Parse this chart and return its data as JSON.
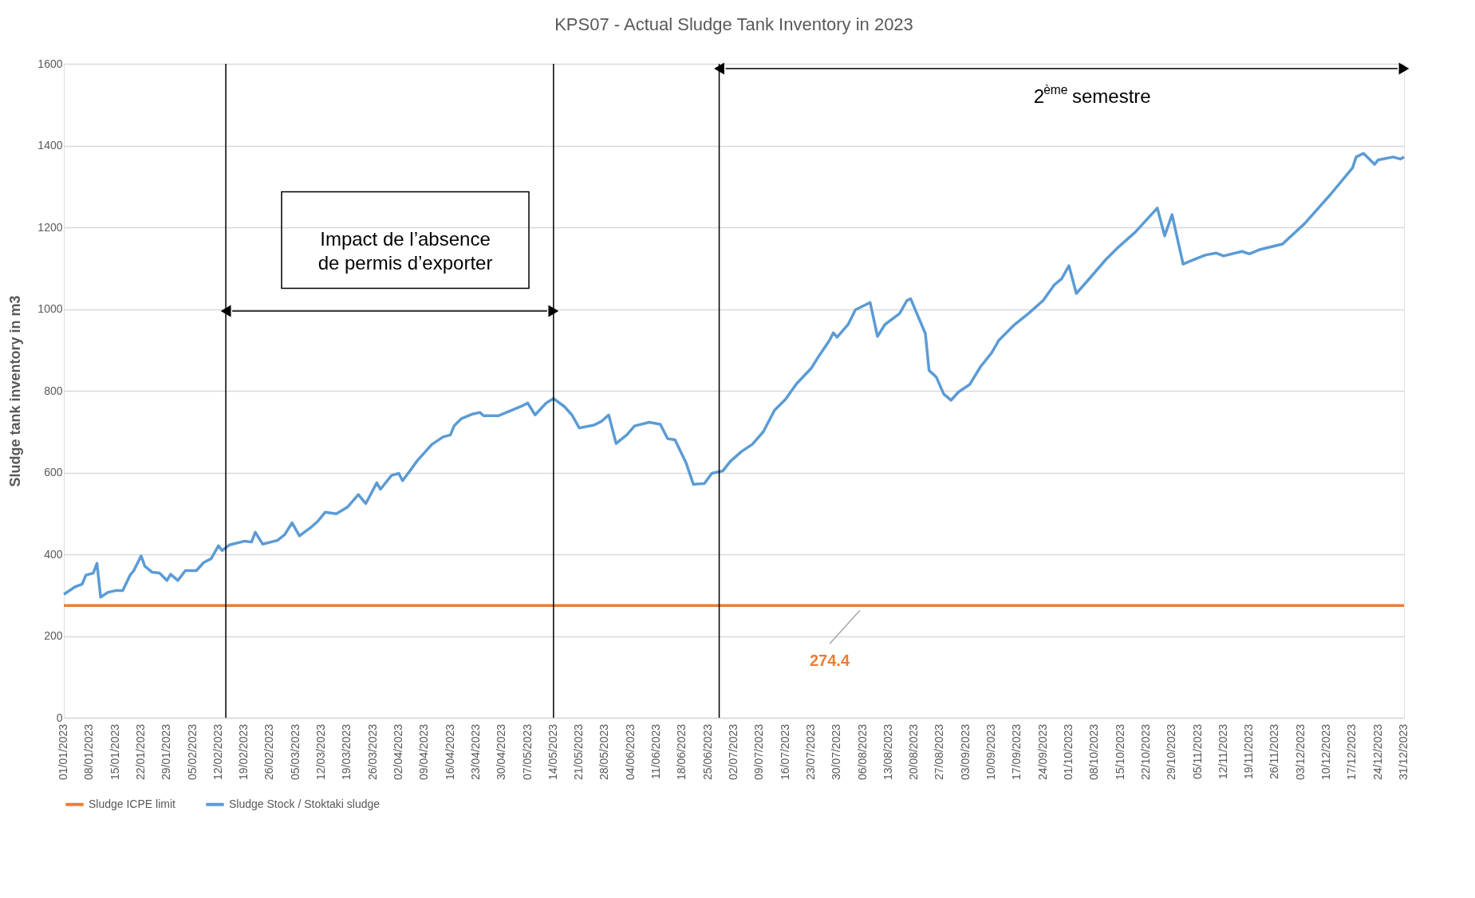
{
  "chart_data": {
    "type": "line",
    "title": "KPS07 - Actual Sludge Tank Inventory in 2023",
    "ylabel": "Sludge tank inventory in m3",
    "xlim": [
      "2023-01-01",
      "2023-12-31"
    ],
    "ylim": [
      0,
      1600
    ],
    "yticks": [
      0,
      200,
      400,
      600,
      800,
      1000,
      1200,
      1400,
      1600
    ],
    "xticks": [
      {
        "value": "2023-01-01",
        "label": "01/01/2023"
      },
      {
        "value": "2023-01-08",
        "label": "08/01/2023"
      },
      {
        "value": "2023-01-15",
        "label": "15/01/2023"
      },
      {
        "value": "2023-01-22",
        "label": "22/01/2023"
      },
      {
        "value": "2023-01-29",
        "label": "29/01/2023"
      },
      {
        "value": "2023-02-05",
        "label": "05/02/2023"
      },
      {
        "value": "2023-02-12",
        "label": "12/02/2023"
      },
      {
        "value": "2023-02-19",
        "label": "19/02/2023"
      },
      {
        "value": "2023-02-26",
        "label": "26/02/2023"
      },
      {
        "value": "2023-03-05",
        "label": "05/03/2023"
      },
      {
        "value": "2023-03-12",
        "label": "12/03/2023"
      },
      {
        "value": "2023-03-19",
        "label": "19/03/2023"
      },
      {
        "value": "2023-03-26",
        "label": "26/03/2023"
      },
      {
        "value": "2023-04-02",
        "label": "02/04/2023"
      },
      {
        "value": "2023-04-09",
        "label": "09/04/2023"
      },
      {
        "value": "2023-04-16",
        "label": "16/04/2023"
      },
      {
        "value": "2023-04-23",
        "label": "23/04/2023"
      },
      {
        "value": "2023-04-30",
        "label": "30/04/2023"
      },
      {
        "value": "2023-05-07",
        "label": "07/05/2023"
      },
      {
        "value": "2023-05-14",
        "label": "14/05/2023"
      },
      {
        "value": "2023-05-21",
        "label": "21/05/2023"
      },
      {
        "value": "2023-05-28",
        "label": "28/05/2023"
      },
      {
        "value": "2023-06-04",
        "label": "04/06/2023"
      },
      {
        "value": "2023-06-11",
        "label": "11/06/2023"
      },
      {
        "value": "2023-06-18",
        "label": "18/06/2023"
      },
      {
        "value": "2023-06-25",
        "label": "25/06/2023"
      },
      {
        "value": "2023-07-02",
        "label": "02/07/2023"
      },
      {
        "value": "2023-07-09",
        "label": "09/07/2023"
      },
      {
        "value": "2023-07-16",
        "label": "16/07/2023"
      },
      {
        "value": "2023-07-23",
        "label": "23/07/2023"
      },
      {
        "value": "2023-07-30",
        "label": "30/07/2023"
      },
      {
        "value": "2023-08-06",
        "label": "06/08/2023"
      },
      {
        "value": "2023-08-13",
        "label": "13/08/2023"
      },
      {
        "value": "2023-08-20",
        "label": "20/08/2023"
      },
      {
        "value": "2023-08-27",
        "label": "27/08/2023"
      },
      {
        "value": "2023-09-03",
        "label": "03/09/2023"
      },
      {
        "value": "2023-09-10",
        "label": "10/09/2023"
      },
      {
        "value": "2023-09-17",
        "label": "17/09/2023"
      },
      {
        "value": "2023-09-24",
        "label": "24/09/2023"
      },
      {
        "value": "2023-10-01",
        "label": "01/10/2023"
      },
      {
        "value": "2023-10-08",
        "label": "08/10/2023"
      },
      {
        "value": "2023-10-15",
        "label": "15/10/2023"
      },
      {
        "value": "2023-10-22",
        "label": "22/10/2023"
      },
      {
        "value": "2023-10-29",
        "label": "29/10/2023"
      },
      {
        "value": "2023-11-05",
        "label": "05/11/2023"
      },
      {
        "value": "2023-11-12",
        "label": "12/11/2023"
      },
      {
        "value": "2023-11-19",
        "label": "19/11/2023"
      },
      {
        "value": "2023-11-26",
        "label": "26/11/2023"
      },
      {
        "value": "2023-12-03",
        "label": "03/12/2023"
      },
      {
        "value": "2023-12-10",
        "label": "10/12/2023"
      },
      {
        "value": "2023-12-17",
        "label": "17/12/2023"
      },
      {
        "value": "2023-12-24",
        "label": "24/12/2023"
      },
      {
        "value": "2023-12-31",
        "label": "31/12/2023"
      }
    ],
    "grid": "y",
    "legend": "bottom",
    "marker": "none",
    "line_style": "solid",
    "series": [
      {
        "name": "Sludge ICPE limit",
        "color": "#ed7d31",
        "x": [
          "2023-01-01",
          "2023-07-28",
          "2023-12-31"
        ],
        "values": [
          274.4,
          274.4,
          274.4
        ],
        "value_labels": [
          null,
          "274.4",
          null
        ]
      },
      {
        "name": "Sludge Stock / Stoktaki sludge",
        "color": "#5b9bd5",
        "x": [
          "2023-01-01",
          "2023-01-04",
          "2023-01-06",
          "2023-01-07",
          "2023-01-09",
          "2023-01-10",
          "2023-01-11",
          "2023-01-13",
          "2023-01-15",
          "2023-01-17",
          "2023-01-19",
          "2023-01-20",
          "2023-01-22",
          "2023-01-23",
          "2023-01-25",
          "2023-01-27",
          "2023-01-29",
          "2023-01-30",
          "2023-02-01",
          "2023-02-03",
          "2023-02-06",
          "2023-02-08",
          "2023-02-10",
          "2023-02-12",
          "2023-02-13",
          "2023-02-15",
          "2023-02-19",
          "2023-02-21",
          "2023-02-22",
          "2023-02-24",
          "2023-02-28",
          "2023-03-02",
          "2023-03-04",
          "2023-03-06",
          "2023-03-09",
          "2023-03-11",
          "2023-03-13",
          "2023-03-16",
          "2023-03-19",
          "2023-03-22",
          "2023-03-24",
          "2023-03-27",
          "2023-03-28",
          "2023-03-31",
          "2023-04-02",
          "2023-04-03",
          "2023-04-05",
          "2023-04-07",
          "2023-04-09",
          "2023-04-11",
          "2023-04-14",
          "2023-04-16",
          "2023-04-17",
          "2023-04-19",
          "2023-04-22",
          "2023-04-24",
          "2023-04-25",
          "2023-04-29",
          "2023-05-02",
          "2023-05-05",
          "2023-05-07",
          "2023-05-09",
          "2023-05-12",
          "2023-05-14",
          "2023-05-17",
          "2023-05-19",
          "2023-05-21",
          "2023-05-25",
          "2023-05-27",
          "2023-05-29",
          "2023-05-31",
          "2023-06-03",
          "2023-06-05",
          "2023-06-09",
          "2023-06-12",
          "2023-06-14",
          "2023-06-16",
          "2023-06-19",
          "2023-06-21",
          "2023-06-24",
          "2023-06-26",
          "2023-06-29",
          "2023-07-01",
          "2023-07-04",
          "2023-07-07",
          "2023-07-10",
          "2023-07-13",
          "2023-07-16",
          "2023-07-19",
          "2023-07-23",
          "2023-07-25",
          "2023-07-28",
          "2023-07-29",
          "2023-07-30",
          "2023-08-02",
          "2023-08-04",
          "2023-08-08",
          "2023-08-10",
          "2023-08-12",
          "2023-08-16",
          "2023-08-18",
          "2023-08-19",
          "2023-08-23",
          "2023-08-24",
          "2023-08-26",
          "2023-08-28",
          "2023-08-30",
          "2023-09-01",
          "2023-09-04",
          "2023-09-07",
          "2023-09-10",
          "2023-09-12",
          "2023-09-16",
          "2023-09-20",
          "2023-09-24",
          "2023-09-27",
          "2023-09-29",
          "2023-10-01",
          "2023-10-03",
          "2023-10-07",
          "2023-10-11",
          "2023-10-14",
          "2023-10-19",
          "2023-10-25",
          "2023-10-27",
          "2023-10-29",
          "2023-11-01",
          "2023-11-04",
          "2023-11-07",
          "2023-11-10",
          "2023-11-12",
          "2023-11-17",
          "2023-11-19",
          "2023-11-22",
          "2023-11-28",
          "2023-12-04",
          "2023-12-11",
          "2023-12-17",
          "2023-12-18",
          "2023-12-20",
          "2023-12-23",
          "2023-12-24",
          "2023-12-28",
          "2023-12-30",
          "2023-12-31"
        ],
        "values": [
          302,
          320,
          327,
          349,
          354,
          378,
          295,
          307,
          311,
          311,
          349,
          360,
          396,
          371,
          356,
          354,
          336,
          351,
          336,
          360,
          360,
          380,
          389,
          421,
          409,
          423,
          432,
          430,
          454,
          425,
          434,
          448,
          477,
          445,
          465,
          481,
          503,
          499,
          515,
          546,
          524,
          575,
          559,
          593,
          598,
          580,
          604,
          629,
          649,
          669,
          687,
          692,
          714,
          732,
          743,
          747,
          739,
          739,
          750,
          761,
          770,
          741,
          770,
          781,
          761,
          741,
          709,
          716,
          725,
          741,
          671,
          693,
          714,
          723,
          718,
          683,
          680,
          624,
          571,
          573,
          598,
          604,
          627,
          651,
          669,
          700,
          752,
          779,
          817,
          855,
          884,
          924,
          942,
          931,
          962,
          998,
          1016,
          933,
          962,
          989,
          1021,
          1025,
          940,
          850,
          833,
          792,
          777,
          797,
          815,
          859,
          893,
          924,
          960,
          989,
          1021,
          1059,
          1074,
          1106,
          1038,
          1079,
          1121,
          1148,
          1188,
          1247,
          1179,
          1231,
          1110,
          1121,
          1132,
          1137,
          1130,
          1141,
          1135,
          1146,
          1159,
          1209,
          1280,
          1345,
          1372,
          1381,
          1354,
          1365,
          1372,
          1367,
          1372
        ]
      }
    ],
    "ref_lines": [
      {
        "axis": "x",
        "value": "2023-02-14",
        "color": "#000000"
      },
      {
        "axis": "x",
        "value": "2023-05-14",
        "color": "#000000"
      },
      {
        "axis": "x",
        "value": "2023-06-28",
        "color": "#000000"
      }
    ],
    "annotations": [
      "Impact de l’absence\nde permis d’exporter",
      "2$^{ème}$ semestre"
    ]
  }
}
